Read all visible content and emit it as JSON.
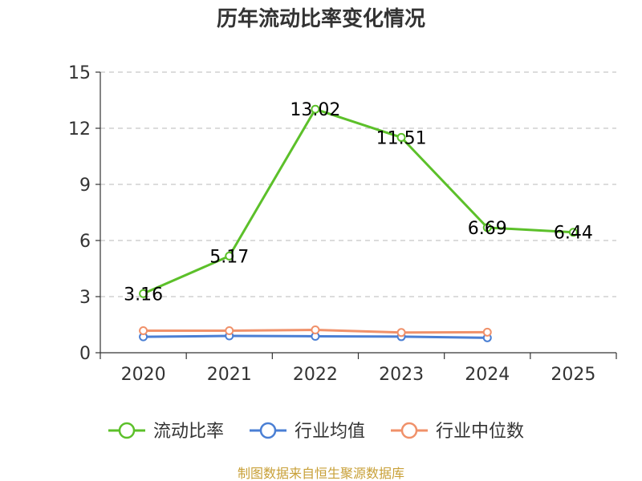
{
  "chart_data": {
    "type": "line",
    "title": "历年流动比率变化情况",
    "categories": [
      "2020",
      "2021",
      "2022",
      "2023",
      "2024",
      "2025"
    ],
    "ylim": [
      0,
      15
    ],
    "yticks": [
      0,
      3,
      6,
      9,
      12,
      15
    ],
    "grid": true,
    "legend_position": "bottom",
    "series": [
      {
        "name": "流动比率",
        "color": "#5cc02a",
        "values": [
          3.16,
          5.17,
          13.02,
          11.51,
          6.69,
          6.44
        ],
        "labels": [
          "3.16",
          "5.17",
          "13.02",
          "11.51",
          "6.69",
          "6.44"
        ]
      },
      {
        "name": "行业均值",
        "color": "#4a7fd4",
        "values": [
          0.85,
          0.9,
          0.88,
          0.86,
          0.8,
          null
        ]
      },
      {
        "name": "行业中位数",
        "color": "#f0916a",
        "values": [
          1.18,
          1.18,
          1.22,
          1.08,
          1.1,
          null
        ]
      }
    ]
  },
  "footer": {
    "source": "制图数据来自恒生聚源数据库"
  }
}
